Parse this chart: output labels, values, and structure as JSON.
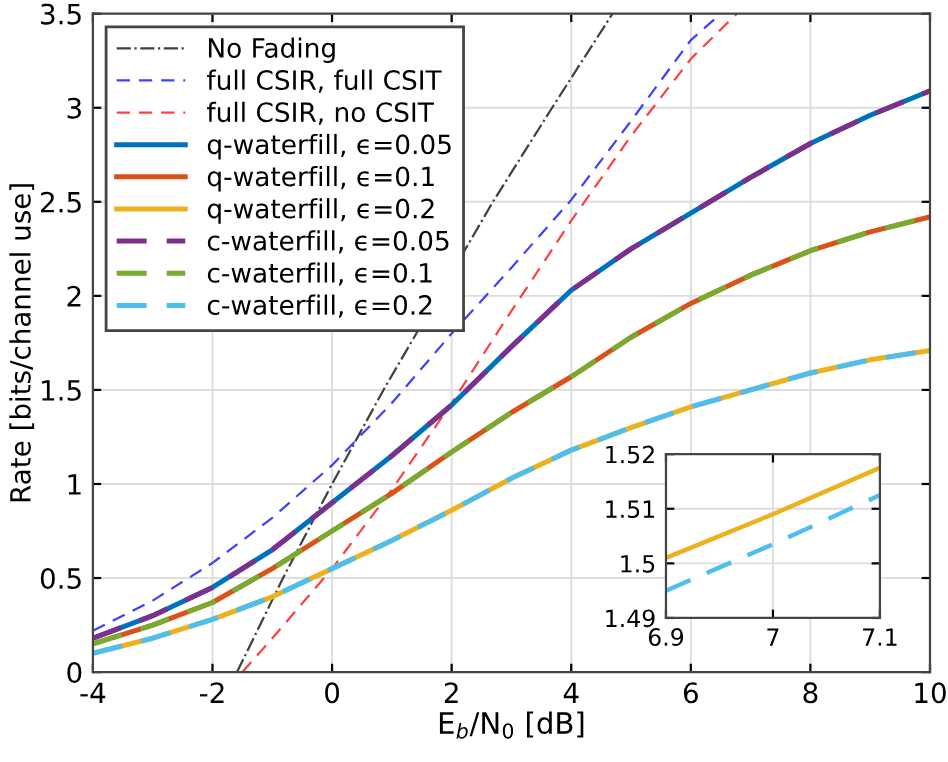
{
  "chart_data": [
    {
      "type": "line",
      "xlabel": "E$_{b}$/N$_{0}$ [dB]",
      "ylabel": "Rate [bits/channel use]",
      "xlim": [
        -4,
        10
      ],
      "ylim": [
        0,
        3.5
      ],
      "xticks": [
        -4,
        -2,
        0,
        2,
        4,
        6,
        8,
        10
      ],
      "yticks": [
        0,
        0.5,
        1,
        1.5,
        2,
        2.5,
        3,
        3.5
      ],
      "grid": true,
      "legend": "top left",
      "marker": "none",
      "series": [
        {
          "name": "No Fading",
          "color": "#404040",
          "line_style": "dashdot",
          "x": [
            -1.59,
            -0.82,
            0,
            0.86,
            2.69,
            3.68,
            4.69
          ],
          "values": [
            0,
            0.5,
            1,
            1.5,
            2.5,
            3,
            3.5
          ]
        },
        {
          "name": "full CSIR, full CSIT",
          "color": "#4040ff",
          "line_style": "dashed",
          "x": [
            -4,
            -3,
            -2,
            -1,
            0,
            1,
            2,
            3,
            4,
            5,
            6,
            6.5
          ],
          "values": [
            0.22,
            0.38,
            0.58,
            0.82,
            1.1,
            1.43,
            1.8,
            2.15,
            2.51,
            2.93,
            3.36,
            3.5
          ]
        },
        {
          "name": "full CSIR, no CSIT",
          "color": "#ff4040",
          "line_style": "dashed",
          "x": [
            -1.5,
            -1,
            0,
            1,
            2,
            3,
            4,
            5,
            6,
            6.77
          ],
          "values": [
            0,
            0.18,
            0.55,
            0.97,
            1.43,
            1.92,
            2.4,
            2.85,
            3.26,
            3.5
          ]
        },
        {
          "name": "q-waterfill, ϵ=0.05",
          "color": "#0072bd",
          "line_style": "solid",
          "x": [
            -4,
            -3,
            -2,
            -1,
            0,
            1,
            2,
            3,
            4,
            5,
            6,
            7,
            8,
            9,
            10
          ],
          "values": [
            0.18,
            0.3,
            0.45,
            0.65,
            0.9,
            1.15,
            1.42,
            1.73,
            2.03,
            2.25,
            2.44,
            2.63,
            2.81,
            2.96,
            3.09
          ]
        },
        {
          "name": "q-waterfill, ϵ=0.1",
          "color": "#d95319",
          "line_style": "solid",
          "x": [
            -4,
            -3,
            -2,
            -1,
            0,
            1,
            2,
            3,
            4,
            5,
            6,
            7,
            8,
            9,
            10
          ],
          "values": [
            0.15,
            0.25,
            0.37,
            0.55,
            0.75,
            0.95,
            1.17,
            1.38,
            1.57,
            1.78,
            1.96,
            2.11,
            2.24,
            2.34,
            2.42
          ]
        },
        {
          "name": "q-waterfill, ϵ=0.2",
          "color": "#edb120",
          "line_style": "solid",
          "x": [
            -4,
            -3,
            -2,
            -1,
            0,
            1,
            2,
            3,
            4,
            5,
            6,
            7,
            8,
            9,
            10
          ],
          "values": [
            0.1,
            0.18,
            0.28,
            0.4,
            0.55,
            0.7,
            0.86,
            1.03,
            1.18,
            1.3,
            1.41,
            1.5,
            1.59,
            1.66,
            1.71
          ]
        },
        {
          "name": "c-waterfill, ϵ=0.05",
          "color": "#7e2f8e",
          "line_style": "dashed",
          "x": [
            -4,
            -3,
            -2,
            -1,
            0,
            1,
            2,
            3,
            4,
            5,
            6,
            7,
            8,
            9,
            10
          ],
          "values": [
            0.18,
            0.3,
            0.45,
            0.65,
            0.9,
            1.15,
            1.42,
            1.73,
            2.03,
            2.25,
            2.44,
            2.63,
            2.81,
            2.96,
            3.09
          ]
        },
        {
          "name": "c-waterfill, ϵ=0.1",
          "color": "#77ac30",
          "line_style": "dashed",
          "x": [
            -4,
            -3,
            -2,
            -1,
            0,
            1,
            2,
            3,
            4,
            5,
            6,
            7,
            8,
            9,
            10
          ],
          "values": [
            0.15,
            0.25,
            0.37,
            0.55,
            0.75,
            0.95,
            1.17,
            1.38,
            1.57,
            1.78,
            1.96,
            2.11,
            2.24,
            2.34,
            2.42
          ]
        },
        {
          "name": "c-waterfill, ϵ=0.2",
          "color": "#4dbeee",
          "line_style": "dashed",
          "x": [
            -4,
            -3,
            -2,
            -1,
            0,
            1,
            2,
            3,
            4,
            5,
            6,
            7,
            8,
            9,
            10
          ],
          "values": [
            0.1,
            0.18,
            0.28,
            0.4,
            0.55,
            0.7,
            0.86,
            1.03,
            1.18,
            1.3,
            1.41,
            1.5,
            1.59,
            1.66,
            1.71
          ]
        }
      ]
    },
    {
      "type": "line",
      "xlim": [
        6.9,
        7.1
      ],
      "ylim": [
        1.49,
        1.52
      ],
      "xticks": [
        6.9,
        7,
        7.1
      ],
      "yticks": [
        1.49,
        1.5,
        1.51,
        1.52
      ],
      "grid": true,
      "marker": "none",
      "series": [
        {
          "color": "#edb120",
          "line_style": "solid",
          "x": [
            6.9,
            7.0,
            7.1
          ],
          "values": [
            1.501,
            1.509,
            1.5175
          ]
        },
        {
          "color": "#4dbeee",
          "line_style": "dashed",
          "x": [
            6.9,
            7.0,
            7.1
          ],
          "values": [
            1.495,
            1.5035,
            1.5125
          ]
        }
      ]
    }
  ]
}
